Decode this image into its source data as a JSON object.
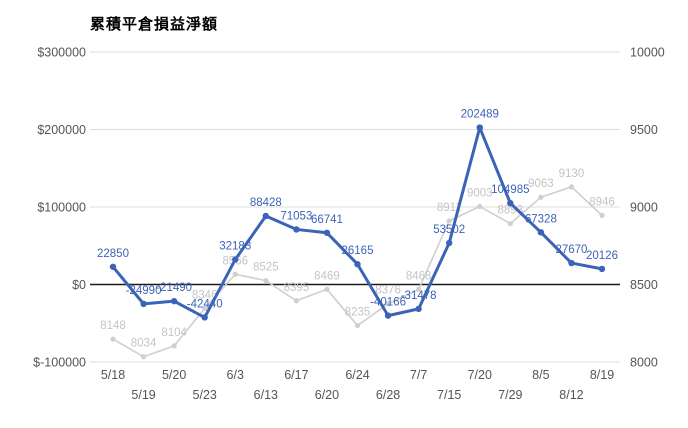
{
  "title": "累積平倉損益淨額",
  "colors": {
    "primary_series": "#3b63b8",
    "primary_label": "#3b63b8",
    "secondary_series": "#cfcfcf",
    "secondary_label": "#c4c4c4",
    "axis_text": "#555555",
    "gridline": "#dcdcdc",
    "zero_line": "#1a1a1a",
    "background": "#ffffff",
    "title_color": "#000000"
  },
  "chart_data": {
    "type": "line",
    "title": "累積平倉損益淨額",
    "legend": "none",
    "grid": true,
    "categories": [
      "5/18",
      "5/19",
      "5/20",
      "5/23",
      "6/3",
      "6/13",
      "6/17",
      "6/20",
      "6/24",
      "6/28",
      "7/7",
      "7/15",
      "7/20",
      "7/29",
      "8/5",
      "8/12",
      "8/19"
    ],
    "series": [
      {
        "name": "cumulative-closed-pnl",
        "axis": "left",
        "values": [
          22850,
          -24990,
          -21490,
          -42440,
          32183,
          88428,
          71053,
          66741,
          26165,
          -40166,
          -31478,
          53502,
          202489,
          104985,
          67328,
          27670,
          20126
        ]
      },
      {
        "name": "index-level",
        "axis": "right",
        "values": [
          8148,
          8034,
          8104,
          8346,
          8566,
          8525,
          8395,
          8469,
          8235,
          8376,
          8468,
          8911,
          9003,
          8893,
          9063,
          9130,
          8946
        ]
      }
    ],
    "left_axis": {
      "ticks": [
        "$300000",
        "$200000",
        "$100000",
        "$0",
        "$-100000"
      ],
      "tick_values": [
        300000,
        200000,
        100000,
        0,
        -100000
      ],
      "range": [
        -100000,
        300000
      ]
    },
    "right_axis": {
      "ticks": [
        "10000",
        "9500",
        "9000",
        "8500",
        "8000"
      ],
      "tick_values": [
        10000,
        9500,
        9000,
        8500,
        8000
      ],
      "range": [
        8000,
        10000
      ]
    }
  }
}
